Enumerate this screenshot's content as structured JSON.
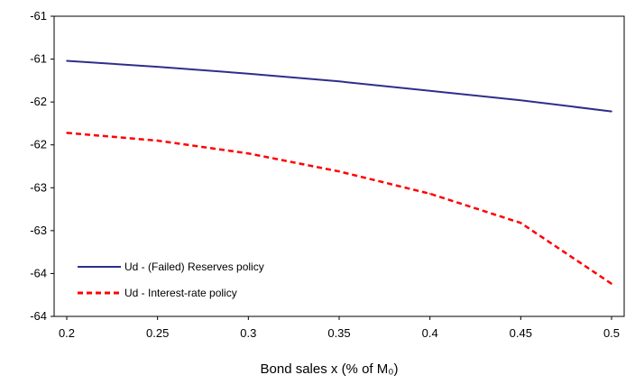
{
  "chart_data": {
    "type": "line",
    "title": "",
    "xlabel": "Bond sales x (% of M₀)",
    "ylabel": "",
    "xlim": [
      0.2,
      0.5
    ],
    "ylim": [
      -64.0,
      -60.5
    ],
    "x_ticks": [
      0.2,
      0.25,
      0.3,
      0.35,
      0.4,
      0.45,
      0.5
    ],
    "x_tick_labels": [
      "0.2",
      "0.25",
      "0.3",
      "0.35",
      "0.4",
      "0.45",
      "0.5"
    ],
    "y_ticks": [
      -60.5,
      -61.0,
      -61.5,
      -62.0,
      -62.5,
      -63.0,
      -63.5,
      -64.0
    ],
    "y_tick_labels": [
      "-61",
      "-61",
      "-62",
      "-62",
      "-63",
      "-63",
      "-64",
      "-64"
    ],
    "grid": false,
    "legend_position": "bottom-left",
    "series": [
      {
        "name": "Ud - (Failed) Reserves policy",
        "color": "#2e2e8c",
        "style": "solid",
        "x": [
          0.2,
          0.25,
          0.3,
          0.35,
          0.4,
          0.45,
          0.5
        ],
        "y": [
          -61.02,
          -61.09,
          -61.17,
          -61.26,
          -61.37,
          -61.48,
          -61.61
        ]
      },
      {
        "name": "Ud - Interest-rate policy",
        "color": "#ff0000",
        "style": "dashed",
        "x": [
          0.2,
          0.25,
          0.3,
          0.35,
          0.4,
          0.45,
          0.5
        ],
        "y": [
          -61.86,
          -61.95,
          -62.1,
          -62.31,
          -62.57,
          -62.91,
          -63.62
        ]
      }
    ]
  }
}
